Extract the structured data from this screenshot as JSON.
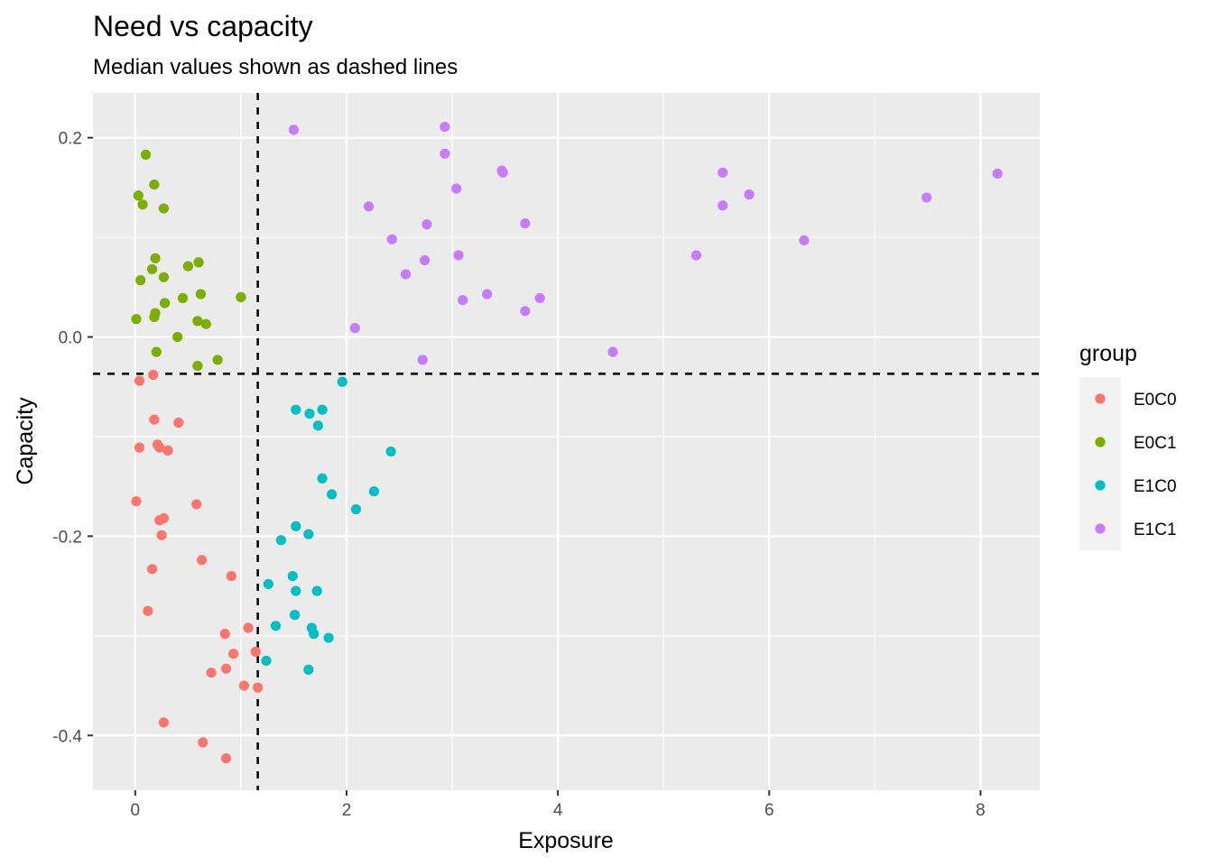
{
  "title": "Need vs capacity",
  "subtitle": "Median values shown as dashed lines",
  "chart_data": {
    "type": "scatter",
    "title": "Need vs capacity",
    "subtitle": "Median values shown as dashed lines",
    "xlabel": "Exposure",
    "ylabel": "Capacity",
    "xlim": [
      -0.4,
      8.56
    ],
    "ylim": [
      -0.455,
      0.245
    ],
    "x_ticks": [
      0,
      2,
      4,
      6,
      8
    ],
    "x_tick_labels": [
      "0",
      "2",
      "4",
      "6",
      "8"
    ],
    "y_ticks": [
      -0.4,
      -0.2,
      0.0,
      0.2
    ],
    "y_tick_labels": [
      "-0.4",
      "-0.2",
      "0.0",
      "0.2"
    ],
    "grid": true,
    "legend": {
      "title": "group",
      "position": "right"
    },
    "median_x": 1.16,
    "median_y": -0.037,
    "series": [
      {
        "name": "E0C0",
        "color": "#F8766D",
        "points": [
          [
            0.04,
            -0.044
          ],
          [
            0.17,
            -0.038
          ],
          [
            0.18,
            -0.083
          ],
          [
            0.41,
            -0.086
          ],
          [
            0.21,
            -0.108
          ],
          [
            0.23,
            -0.111
          ],
          [
            0.04,
            -0.111
          ],
          [
            0.31,
            -0.114
          ],
          [
            0.01,
            -0.165
          ],
          [
            0.58,
            -0.168
          ],
          [
            0.27,
            -0.182
          ],
          [
            0.23,
            -0.184
          ],
          [
            0.25,
            -0.199
          ],
          [
            0.63,
            -0.224
          ],
          [
            0.16,
            -0.233
          ],
          [
            0.91,
            -0.24
          ],
          [
            0.12,
            -0.275
          ],
          [
            1.07,
            -0.292
          ],
          [
            0.85,
            -0.298
          ],
          [
            1.14,
            -0.316
          ],
          [
            0.93,
            -0.318
          ],
          [
            0.86,
            -0.333
          ],
          [
            0.72,
            -0.337
          ],
          [
            1.03,
            -0.35
          ],
          [
            1.16,
            -0.352
          ],
          [
            0.27,
            -0.387
          ],
          [
            0.64,
            -0.407
          ],
          [
            0.86,
            -0.423
          ]
        ]
      },
      {
        "name": "E0C1",
        "color": "#7CAE00",
        "points": [
          [
            0.1,
            0.183
          ],
          [
            0.18,
            0.153
          ],
          [
            0.03,
            0.142
          ],
          [
            0.07,
            0.133
          ],
          [
            0.27,
            0.129
          ],
          [
            0.19,
            0.079
          ],
          [
            0.6,
            0.075
          ],
          [
            0.5,
            0.071
          ],
          [
            0.16,
            0.068
          ],
          [
            0.27,
            0.06
          ],
          [
            0.05,
            0.057
          ],
          [
            0.62,
            0.043
          ],
          [
            0.45,
            0.039
          ],
          [
            1.0,
            0.04
          ],
          [
            0.28,
            0.034
          ],
          [
            0.19,
            0.024
          ],
          [
            0.01,
            0.018
          ],
          [
            0.18,
            0.02
          ],
          [
            0.59,
            0.016
          ],
          [
            0.67,
            0.013
          ],
          [
            0.4,
            0.0
          ],
          [
            0.2,
            -0.015
          ],
          [
            0.78,
            -0.023
          ],
          [
            0.59,
            -0.029
          ]
        ]
      },
      {
        "name": "E1C0",
        "color": "#00BFC4",
        "points": [
          [
            1.96,
            -0.045
          ],
          [
            1.52,
            -0.073
          ],
          [
            1.77,
            -0.073
          ],
          [
            1.65,
            -0.077
          ],
          [
            1.73,
            -0.089
          ],
          [
            2.42,
            -0.115
          ],
          [
            1.77,
            -0.142
          ],
          [
            1.86,
            -0.158
          ],
          [
            2.26,
            -0.155
          ],
          [
            2.09,
            -0.173
          ],
          [
            1.52,
            -0.19
          ],
          [
            1.64,
            -0.198
          ],
          [
            1.38,
            -0.204
          ],
          [
            1.49,
            -0.24
          ],
          [
            1.26,
            -0.248
          ],
          [
            1.52,
            -0.255
          ],
          [
            1.72,
            -0.255
          ],
          [
            1.51,
            -0.279
          ],
          [
            1.33,
            -0.29
          ],
          [
            1.67,
            -0.292
          ],
          [
            1.69,
            -0.298
          ],
          [
            1.83,
            -0.302
          ],
          [
            1.24,
            -0.325
          ],
          [
            1.64,
            -0.334
          ]
        ]
      },
      {
        "name": "E1C1",
        "color": "#C77CFF",
        "points": [
          [
            2.93,
            0.211
          ],
          [
            1.5,
            0.208
          ],
          [
            2.93,
            0.184
          ],
          [
            3.47,
            0.167
          ],
          [
            3.48,
            0.165
          ],
          [
            5.56,
            0.165
          ],
          [
            8.16,
            0.164
          ],
          [
            3.04,
            0.149
          ],
          [
            5.81,
            0.143
          ],
          [
            7.49,
            0.14
          ],
          [
            5.56,
            0.132
          ],
          [
            2.21,
            0.131
          ],
          [
            3.69,
            0.114
          ],
          [
            2.76,
            0.113
          ],
          [
            2.43,
            0.098
          ],
          [
            6.33,
            0.097
          ],
          [
            3.06,
            0.082
          ],
          [
            5.31,
            0.082
          ],
          [
            2.74,
            0.077
          ],
          [
            2.56,
            0.063
          ],
          [
            3.33,
            0.043
          ],
          [
            3.83,
            0.039
          ],
          [
            3.1,
            0.037
          ],
          [
            3.69,
            0.026
          ],
          [
            2.08,
            0.009
          ],
          [
            4.52,
            -0.015
          ],
          [
            2.72,
            -0.023
          ]
        ]
      }
    ]
  }
}
